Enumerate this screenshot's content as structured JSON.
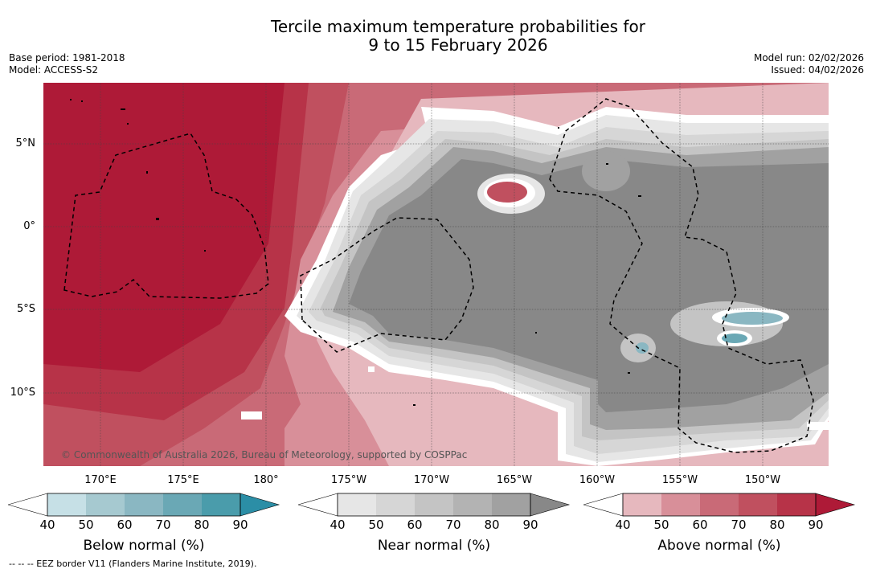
{
  "title": {
    "line1": "Tercile maximum temperature probabilities for",
    "line2": "9 to 15 February 2026"
  },
  "meta_left": {
    "base_period": "Base period: 1981-2018",
    "model": "Model: ACCESS-S2"
  },
  "meta_right": {
    "model_run": "Model run: 02/02/2026",
    "issued": "Issued: 04/02/2026"
  },
  "map": {
    "lat_labels": [
      "5°N",
      "0°",
      "5°S",
      "10°S"
    ],
    "lon_labels": [
      "170°E",
      "175°E",
      "180°",
      "175°W",
      "170°W",
      "165°W",
      "160°W",
      "155°W",
      "150°W"
    ],
    "copyright": "© Commonwealth of Australia 2026, Bureau of Meteorology, supported by COSPPac"
  },
  "colorbars": [
    {
      "label": "Below normal (%)",
      "ticks": [
        "40",
        "50",
        "60",
        "70",
        "80",
        "90"
      ],
      "colors": [
        "#ffffff",
        "#c6e0e6",
        "#a6c9d0",
        "#8ab7c2",
        "#6aa8b5",
        "#4a9cab",
        "#2b8ea6"
      ]
    },
    {
      "label": "Near normal (%)",
      "ticks": [
        "40",
        "50",
        "60",
        "70",
        "80",
        "90"
      ],
      "colors": [
        "#ffffff",
        "#e6e6e6",
        "#d6d6d6",
        "#c4c4c4",
        "#b3b3b3",
        "#a1a1a1",
        "#888888"
      ]
    },
    {
      "label": "Above normal (%)",
      "ticks": [
        "40",
        "50",
        "60",
        "70",
        "80",
        "90"
      ],
      "colors": [
        "#ffffff",
        "#e6b8be",
        "#d88f99",
        "#c96a77",
        "#c0505f",
        "#b73348",
        "#ae1a37"
      ]
    }
  ],
  "footer": "--  --  -- EEZ border V11 (Flanders Marine Institute, 2019)."
}
